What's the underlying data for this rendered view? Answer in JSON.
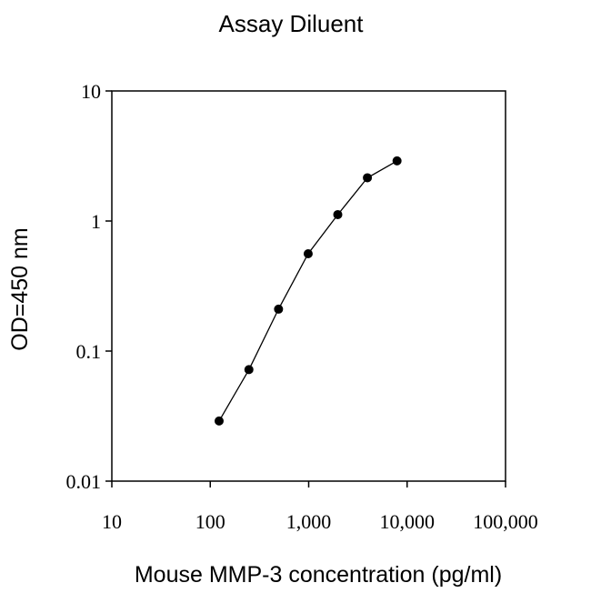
{
  "chart_data": {
    "type": "line",
    "title": "Assay Diluent",
    "xlabel": "Mouse MMP-3 concentration (pg/ml)",
    "ylabel": "OD=450 nm",
    "x_scale": "log",
    "y_scale": "log",
    "xlim": [
      10,
      100000
    ],
    "ylim": [
      0.01,
      10
    ],
    "x_ticks": [
      {
        "value": 10,
        "label": "10"
      },
      {
        "value": 100,
        "label": "100"
      },
      {
        "value": 1000,
        "label": "1,000"
      },
      {
        "value": 10000,
        "label": "10,000"
      },
      {
        "value": 100000,
        "label": "100,000"
      }
    ],
    "y_ticks": [
      {
        "value": 0.01,
        "label": "0.01"
      },
      {
        "value": 0.1,
        "label": "0.1"
      },
      {
        "value": 1,
        "label": "1"
      },
      {
        "value": 10,
        "label": "10"
      }
    ],
    "grid": false,
    "legend": "none",
    "series": [
      {
        "color": "#000000",
        "marker": "circle",
        "points": [
          {
            "x": 123,
            "y": 0.029
          },
          {
            "x": 247,
            "y": 0.072
          },
          {
            "x": 494,
            "y": 0.21
          },
          {
            "x": 988,
            "y": 0.56
          },
          {
            "x": 1975,
            "y": 1.12
          },
          {
            "x": 3950,
            "y": 2.15
          },
          {
            "x": 7900,
            "y": 2.9
          }
        ]
      }
    ]
  }
}
